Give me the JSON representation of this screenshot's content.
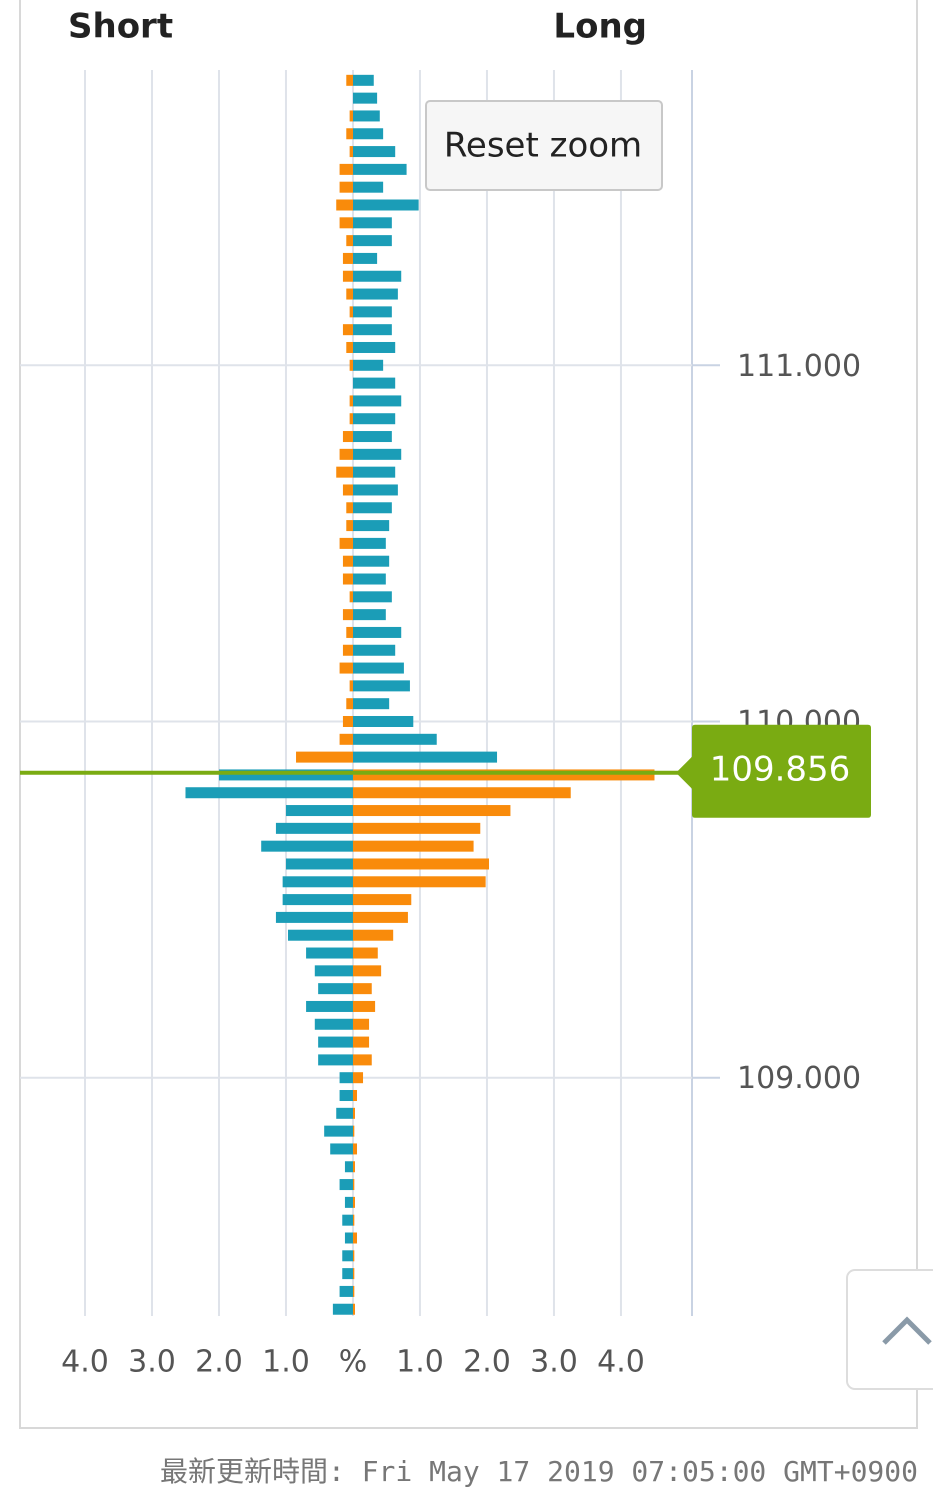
{
  "chart_data": {
    "type": "hbar",
    "left_label": "Short",
    "right_label": "Long",
    "button": "Reset zoom",
    "footer": "最新更新時間: Fri May 17 2019 07:05:00 GMT+0900",
    "current_price": 109.856,
    "current_price_color": "#7aab12",
    "y": [
      111.8,
      111.75,
      111.7,
      111.65,
      111.6,
      111.55,
      111.5,
      111.45,
      111.4,
      111.35,
      111.3,
      111.25,
      111.2,
      111.15,
      111.1,
      111.05,
      111.0,
      110.95,
      110.9,
      110.85,
      110.8,
      110.75,
      110.7,
      110.65,
      110.6,
      110.55,
      110.5,
      110.45,
      110.4,
      110.35,
      110.3,
      110.25,
      110.2,
      110.15,
      110.1,
      110.05,
      110.0,
      109.95,
      109.9,
      109.85,
      109.8,
      109.75,
      109.7,
      109.65,
      109.6,
      109.55,
      109.5,
      109.45,
      109.4,
      109.35,
      109.3,
      109.25,
      109.2,
      109.15,
      109.1,
      109.05,
      109.0,
      108.95,
      108.9,
      108.85,
      108.8,
      108.75,
      108.7,
      108.65,
      108.6,
      108.55,
      108.5,
      108.45,
      108.4,
      108.35
    ],
    "series": [
      {
        "color": "#1b9db7",
        "values": [
          0.31,
          0.36,
          0.4,
          0.45,
          0.63,
          0.8,
          0.45,
          0.98,
          0.58,
          0.58,
          0.36,
          0.72,
          0.67,
          0.58,
          0.58,
          0.63,
          0.45,
          0.63,
          0.72,
          0.63,
          0.58,
          0.72,
          0.63,
          0.67,
          0.58,
          0.54,
          0.49,
          0.54,
          0.49,
          0.58,
          0.49,
          0.72,
          0.63,
          0.76,
          0.85,
          0.54,
          0.9,
          1.25,
          2.15,
          -2.0,
          -2.5,
          -1.0,
          -1.15,
          -1.37,
          -1.0,
          -1.05,
          -1.05,
          -1.15,
          -0.97,
          -0.7,
          -0.57,
          -0.52,
          -0.7,
          -0.57,
          -0.52,
          -0.52,
          -0.2,
          -0.2,
          -0.25,
          -0.43,
          -0.34,
          -0.12,
          -0.2,
          -0.12,
          -0.16,
          -0.12,
          -0.16,
          -0.16,
          -0.2,
          -0.3
        ]
      },
      {
        "color": "#f98b0b",
        "values": [
          -0.1,
          0,
          -0.05,
          -0.1,
          -0.05,
          -0.2,
          -0.2,
          -0.25,
          -0.2,
          -0.1,
          -0.15,
          -0.15,
          -0.1,
          -0.05,
          -0.15,
          -0.1,
          -0.05,
          0,
          -0.05,
          -0.05,
          -0.15,
          -0.2,
          -0.25,
          -0.15,
          -0.1,
          -0.1,
          -0.2,
          -0.15,
          -0.15,
          -0.05,
          -0.15,
          -0.1,
          -0.15,
          -0.2,
          -0.05,
          -0.1,
          -0.15,
          -0.2,
          -0.85,
          4.5,
          3.25,
          2.35,
          1.9,
          1.8,
          2.03,
          1.98,
          0.87,
          0.82,
          0.6,
          0.37,
          0.42,
          0.28,
          0.33,
          0.24,
          0.24,
          0.28,
          0.15,
          0.06,
          0.03,
          0.02,
          0.06,
          0.03,
          0.02,
          0.03,
          0.02,
          0.06,
          0.02,
          0.02,
          0.02,
          0.03
        ]
      }
    ],
    "xlim": [
      -4.97,
      5.06
    ],
    "xticks": [
      {
        "value": -4,
        "label": "4.0"
      },
      {
        "value": -3,
        "label": "3.0"
      },
      {
        "value": -2,
        "label": "2.0"
      },
      {
        "value": -1,
        "label": "1.0"
      },
      {
        "value": 0,
        "label": "%"
      },
      {
        "value": 1,
        "label": "1.0"
      },
      {
        "value": 2,
        "label": "2.0"
      },
      {
        "value": 3,
        "label": "3.0"
      },
      {
        "value": 4,
        "label": "4.0"
      }
    ],
    "ylim": [
      108.331,
      111.829
    ],
    "yticks": [
      {
        "value": 109,
        "label": "109.000"
      },
      {
        "value": 110,
        "label": "110.000"
      },
      {
        "value": 111,
        "label": "111.000"
      }
    ],
    "grid": true
  }
}
